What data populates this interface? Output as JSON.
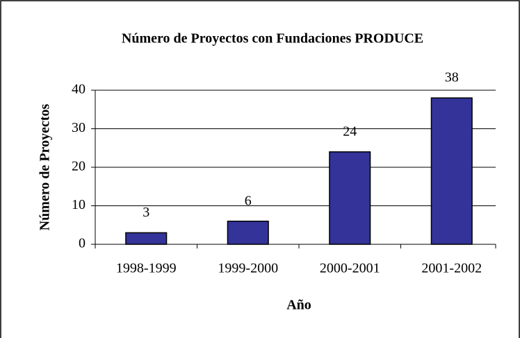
{
  "chart_data": {
    "type": "bar",
    "title": "Número de Proyectos con Fundaciones PRODUCE",
    "x_label": "Año",
    "y_label": "Número de Proyectos",
    "categories": [
      "1998-1999",
      "1999-2000",
      "2000-2001",
      "2001-2002"
    ],
    "values": [
      3,
      6,
      24,
      38
    ],
    "color": "#333399",
    "ylim": [
      0,
      40
    ],
    "yticks": [
      0,
      10,
      20,
      30,
      40
    ],
    "grid": true
  }
}
